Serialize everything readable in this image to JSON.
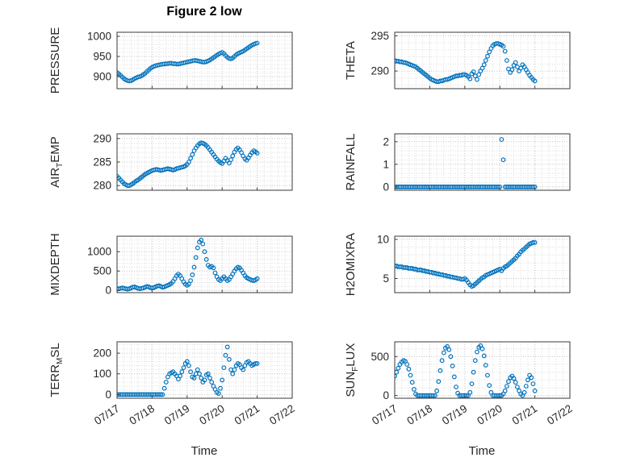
{
  "figure": {
    "title": "Figure 2 low",
    "xlabel": "Time",
    "xlim": [
      17,
      22
    ],
    "marker_color": "#0072BD",
    "axis_color": "#3a3a3a",
    "grid_color": "#c3c3c3",
    "minor_grid_color": "#dedede",
    "tick_label_color": "#262626"
  },
  "x_axis": {
    "values": [
      17,
      18,
      19,
      20,
      21,
      22
    ],
    "labels": [
      "07/17",
      "07/18",
      "07/19",
      "07/20",
      "07/21",
      "07/22"
    ]
  },
  "chart_data": [
    {
      "name": "pressure",
      "type": "scatter",
      "row": 0,
      "col": 0,
      "ylabel_pre": "PRESSURE",
      "ylabel_sub": "",
      "ylabel_post": "",
      "ylim": [
        870,
        1010
      ],
      "yticks": [
        900,
        950,
        1000
      ],
      "x_start": 17,
      "x_step": 0.05,
      "values": [
        910,
        907,
        903,
        899,
        895,
        892,
        890,
        889,
        890,
        892,
        895,
        897,
        899,
        900,
        902,
        905,
        908,
        912,
        916,
        920,
        923,
        925,
        927,
        928,
        929,
        930,
        931,
        931,
        932,
        932,
        933,
        933,
        932,
        932,
        931,
        931,
        932,
        933,
        934,
        935,
        936,
        937,
        938,
        939,
        940,
        940,
        939,
        938,
        937,
        936,
        936,
        937,
        939,
        941,
        944,
        947,
        950,
        953,
        956,
        958,
        960,
        957,
        952,
        948,
        945,
        944,
        946,
        950,
        954,
        957,
        959,
        961,
        963,
        966,
        969,
        972,
        975,
        978,
        980,
        982,
        983
      ]
    },
    {
      "name": "theta",
      "type": "scatter",
      "row": 0,
      "col": 1,
      "ylabel_pre": "THETA",
      "ylabel_sub": "",
      "ylabel_post": "",
      "ylim": [
        287.5,
        295.5
      ],
      "yticks": [
        290,
        295
      ],
      "x_start": 17,
      "x_step": 0.05,
      "values": [
        291.5,
        291.4,
        291.4,
        291.3,
        291.3,
        291.2,
        291.2,
        291.1,
        291.0,
        290.9,
        290.8,
        290.7,
        290.6,
        290.4,
        290.2,
        290.0,
        289.8,
        289.6,
        289.4,
        289.2,
        289.0,
        288.8,
        288.7,
        288.6,
        288.5,
        288.5,
        288.6,
        288.6,
        288.7,
        288.8,
        288.8,
        288.9,
        289.0,
        289.1,
        289.2,
        289.3,
        289.3,
        289.4,
        289.4,
        289.5,
        289.5,
        289.4,
        289.2,
        288.9,
        289.6,
        289.9,
        289.3,
        288.8,
        289.5,
        290.0,
        290.4,
        290.9,
        291.5,
        292.1,
        292.7,
        293.2,
        293.6,
        293.8,
        293.9,
        293.9,
        293.8,
        293.7,
        293.5,
        292.8,
        291.5,
        290.3,
        289.8,
        290.2,
        290.8,
        291.2,
        290.6,
        290.0,
        290.4,
        290.9,
        290.6,
        290.2,
        289.8,
        289.4,
        289.1,
        288.8,
        288.6
      ]
    },
    {
      "name": "air-temp",
      "type": "scatter",
      "row": 1,
      "col": 0,
      "ylabel_pre": "AIR",
      "ylabel_sub": "T",
      "ylabel_post": "EMP",
      "ylim": [
        279,
        291
      ],
      "yticks": [
        280,
        285,
        290
      ],
      "x_start": 17,
      "x_step": 0.05,
      "values": [
        282.0,
        281.6,
        281.2,
        280.8,
        280.4,
        280.2,
        280.0,
        280.0,
        280.2,
        280.4,
        280.7,
        281.0,
        281.2,
        281.5,
        281.8,
        282.1,
        282.4,
        282.6,
        282.8,
        283.0,
        283.2,
        283.3,
        283.4,
        283.4,
        283.3,
        283.2,
        283.3,
        283.4,
        283.5,
        283.6,
        283.5,
        283.4,
        283.3,
        283.4,
        283.6,
        283.7,
        283.8,
        283.9,
        284.0,
        284.2,
        284.5,
        285.0,
        285.8,
        286.6,
        287.4,
        288.0,
        288.5,
        288.9,
        289.1,
        289.0,
        288.8,
        288.5,
        288.1,
        287.6,
        287.1,
        286.6,
        286.1,
        285.6,
        285.2,
        284.9,
        284.7,
        285.2,
        285.8,
        285.3,
        284.8,
        285.5,
        286.3,
        287.1,
        287.7,
        288.0,
        287.6,
        287.0,
        286.3,
        285.7,
        285.4,
        285.9,
        286.5,
        287.0,
        287.4,
        287.2,
        286.9
      ]
    },
    {
      "name": "rainfall",
      "type": "scatter",
      "row": 1,
      "col": 1,
      "ylabel_pre": "RAINFALL",
      "ylabel_sub": "",
      "ylabel_post": "",
      "ylim": [
        -0.15,
        2.35
      ],
      "yticks": [
        0,
        1,
        2
      ],
      "x_start": 17,
      "x_step": 0.05,
      "values": [
        0,
        0,
        0,
        0,
        0,
        0,
        0,
        0,
        0,
        0,
        0,
        0,
        0,
        0,
        0,
        0,
        0,
        0,
        0,
        0,
        0,
        0,
        0,
        0,
        0,
        0,
        0,
        0,
        0,
        0,
        0,
        0,
        0,
        0,
        0,
        0,
        0,
        0,
        0,
        0,
        0,
        0,
        0,
        0,
        0,
        0,
        0,
        0,
        0,
        0,
        0,
        0,
        0,
        0,
        0,
        0,
        0,
        0,
        0,
        0,
        0,
        2.1,
        1.2,
        0,
        0,
        0,
        0,
        0,
        0,
        0,
        0,
        0,
        0,
        0,
        0,
        0,
        0,
        0,
        0,
        0,
        0
      ]
    },
    {
      "name": "mixdepth",
      "type": "scatter",
      "row": 2,
      "col": 0,
      "ylabel_pre": "MIXDEPTH",
      "ylabel_sub": "",
      "ylabel_post": "",
      "ylim": [
        -60,
        1400
      ],
      "yticks": [
        0,
        500,
        1000
      ],
      "x_start": 17,
      "x_step": 0.05,
      "values": [
        30,
        40,
        50,
        60,
        50,
        40,
        30,
        40,
        60,
        80,
        90,
        70,
        50,
        40,
        50,
        60,
        80,
        100,
        90,
        70,
        60,
        70,
        90,
        110,
        120,
        100,
        80,
        90,
        110,
        130,
        150,
        180,
        230,
        300,
        380,
        420,
        380,
        300,
        220,
        160,
        130,
        160,
        250,
        400,
        600,
        850,
        1100,
        1250,
        1300,
        1200,
        1000,
        800,
        650,
        600,
        620,
        580,
        450,
        350,
        280,
        250,
        300,
        350,
        300,
        250,
        280,
        350,
        420,
        500,
        560,
        600,
        580,
        520,
        450,
        380,
        330,
        300,
        280,
        260,
        250,
        270,
        300
      ]
    },
    {
      "name": "h2omixra",
      "type": "scatter",
      "row": 2,
      "col": 1,
      "ylabel_pre": "H2OMIXRA",
      "ylabel_sub": "",
      "ylabel_post": "",
      "ylim": [
        3.2,
        10.4
      ],
      "yticks": [
        5,
        10
      ],
      "x_start": 17,
      "x_step": 0.05,
      "values": [
        6.6,
        6.6,
        6.5,
        6.5,
        6.5,
        6.4,
        6.4,
        6.4,
        6.3,
        6.3,
        6.3,
        6.2,
        6.2,
        6.1,
        6.1,
        6.1,
        6.0,
        6.0,
        5.9,
        5.9,
        5.8,
        5.8,
        5.7,
        5.7,
        5.6,
        5.6,
        5.5,
        5.5,
        5.4,
        5.4,
        5.3,
        5.3,
        5.2,
        5.2,
        5.1,
        5.1,
        5.0,
        5.0,
        4.9,
        4.9,
        5.0,
        4.8,
        4.5,
        4.2,
        4.0,
        4.1,
        4.3,
        4.5,
        4.7,
        4.9,
        5.1,
        5.2,
        5.4,
        5.5,
        5.6,
        5.7,
        5.8,
        5.9,
        6.0,
        6.1,
        6.2,
        6.0,
        6.3,
        6.5,
        6.6,
        6.8,
        7.0,
        7.2,
        7.4,
        7.6,
        7.9,
        8.1,
        8.4,
        8.6,
        8.8,
        9.0,
        9.2,
        9.4,
        9.5,
        9.6,
        9.6
      ]
    },
    {
      "name": "terr-msl",
      "type": "scatter",
      "row": 3,
      "col": 0,
      "ylabel_pre": "TERR",
      "ylabel_sub": "M",
      "ylabel_post": "SL",
      "ylim": [
        -18,
        255
      ],
      "yticks": [
        0,
        100,
        200
      ],
      "x_start": 17,
      "x_step": 0.05,
      "values": [
        0,
        0,
        0,
        0,
        0,
        0,
        0,
        0,
        0,
        0,
        0,
        0,
        0,
        0,
        0,
        0,
        0,
        0,
        0,
        0,
        0,
        0,
        0,
        0,
        0,
        0,
        0,
        30,
        60,
        85,
        100,
        105,
        110,
        100,
        90,
        75,
        90,
        110,
        130,
        150,
        160,
        140,
        110,
        85,
        80,
        100,
        120,
        100,
        80,
        60,
        70,
        95,
        100,
        80,
        60,
        40,
        25,
        10,
        5,
        30,
        70,
        130,
        190,
        230,
        170,
        120,
        100,
        120,
        140,
        150,
        145,
        130,
        120,
        140,
        155,
        160,
        150,
        140,
        145,
        150,
        150
      ]
    },
    {
      "name": "sun-flux",
      "type": "scatter",
      "row": 3,
      "col": 1,
      "ylabel_pre": "SUN",
      "ylabel_sub": "F",
      "ylabel_post": "LUX",
      "ylim": [
        -35,
        690
      ],
      "yticks": [
        0,
        500
      ],
      "x_start": 17,
      "x_step": 0.05,
      "values": [
        250,
        300,
        350,
        400,
        430,
        450,
        440,
        400,
        340,
        260,
        170,
        80,
        20,
        0,
        0,
        0,
        0,
        0,
        0,
        0,
        0,
        0,
        0,
        0,
        60,
        180,
        320,
        450,
        550,
        610,
        630,
        590,
        500,
        380,
        240,
        110,
        30,
        0,
        0,
        0,
        0,
        0,
        0,
        40,
        150,
        300,
        450,
        560,
        620,
        640,
        600,
        510,
        390,
        260,
        130,
        40,
        0,
        0,
        0,
        0,
        0,
        0,
        20,
        60,
        120,
        180,
        230,
        250,
        220,
        170,
        110,
        60,
        20,
        0,
        40,
        120,
        200,
        260,
        230,
        150,
        60
      ]
    }
  ]
}
